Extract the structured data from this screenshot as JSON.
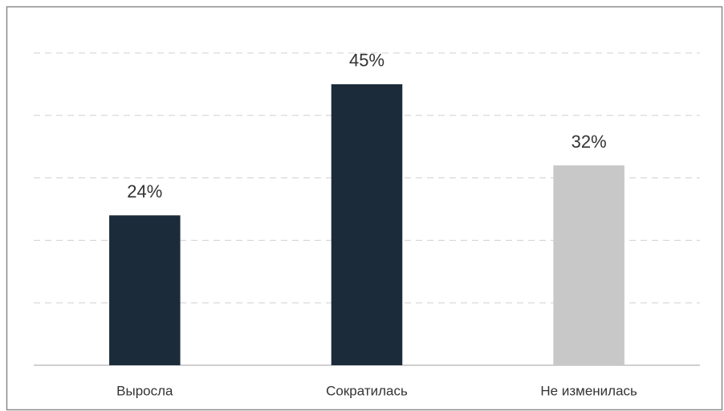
{
  "chart_data": {
    "type": "bar",
    "categories": [
      "Выросла",
      "Сократилась",
      "Не изменилась"
    ],
    "values": [
      24,
      45,
      32
    ],
    "value_labels": [
      "24%",
      "45%",
      "32%"
    ],
    "colors": [
      "#1c2b3a",
      "#1c2b3a",
      "#c8c8c8"
    ],
    "ylim": [
      0,
      50
    ],
    "yticks": [
      0,
      10,
      20,
      30,
      40,
      50
    ],
    "grid": true
  }
}
